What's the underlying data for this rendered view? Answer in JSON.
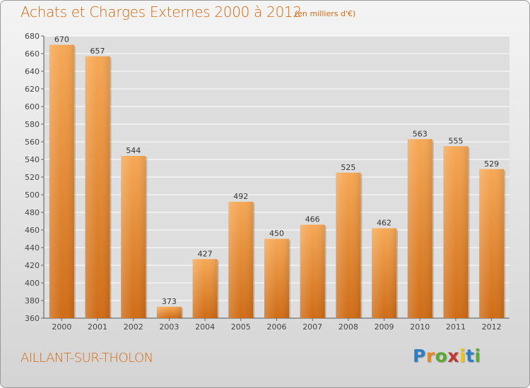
{
  "header": {
    "title": "Achats et Charges Externes 2000 à 2012",
    "unit": "(en milliers d'€)"
  },
  "footer": {
    "place": "AILLANT-SUR-THOLON",
    "brand": "Proxiti",
    "brand_letters": [
      "P",
      "r",
      "o",
      "x",
      "i",
      "t",
      "i"
    ],
    "brand_colors": [
      "#2d7ec2",
      "#e8871e",
      "#5aa934",
      "#c0392b",
      "#f1c40f",
      "#2d7ec2",
      "#5aa934"
    ]
  },
  "colors": {
    "accent": "#d4680e",
    "bar_light": "#f6a855",
    "bar_dark": "#cf6c16",
    "grid": "#ffffff",
    "axis_text": "#444444"
  },
  "chart_data": {
    "type": "bar",
    "title": "Achats et Charges Externes 2000 à 2012",
    "categories": [
      "2000",
      "2001",
      "2002",
      "2003",
      "2004",
      "2005",
      "2006",
      "2007",
      "2008",
      "2009",
      "2010",
      "2011",
      "2012"
    ],
    "values": [
      670,
      657,
      544,
      373,
      427,
      492,
      450,
      466,
      525,
      462,
      563,
      555,
      529
    ],
    "ylim": [
      360,
      680
    ],
    "yticks": [
      360,
      380,
      400,
      420,
      440,
      460,
      480,
      500,
      520,
      540,
      560,
      580,
      600,
      620,
      640,
      660,
      680
    ],
    "grid": true,
    "xlabel": "",
    "ylabel": ""
  }
}
